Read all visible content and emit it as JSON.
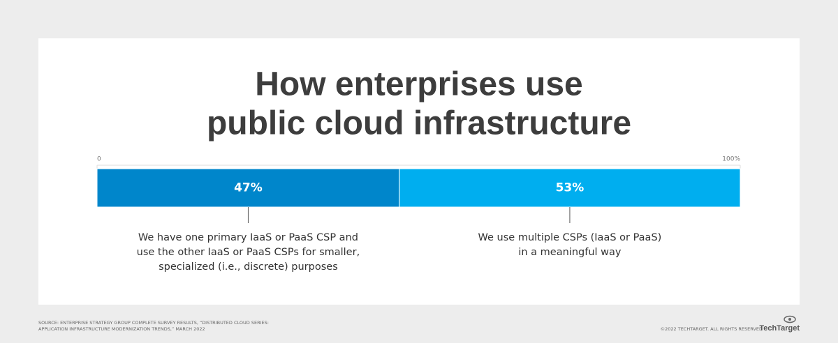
{
  "chart_data": {
    "type": "stacked-bar-100",
    "title": [
      "How enterprises use",
      "public cloud infrastructure"
    ],
    "xlim": [
      0,
      100
    ],
    "xticks": [
      0,
      {
        "value": 100,
        "label": "100%"
      }
    ],
    "series": [
      {
        "name": "We have one primary IaaS or PaaS CSP and use the other IaaS or PaaS CSPs for smaller, specialized (i.e., discrete) purposes",
        "color": "#0086cb",
        "values": [
          47
        ],
        "value_labels": [
          "47%"
        ]
      },
      {
        "name": "We use multiple CSPs (IaaS or PaaS) in a meaningful way",
        "color": "#00aeef",
        "values": [
          53
        ],
        "value_labels": [
          "53%"
        ]
      }
    ],
    "source": [
      "SOURCE: ENTERPRISE STRATEGY GROUP COMPLETE SURVEY RESULTS, “DISTRIBUTED CLOUD SERIES:",
      "APPLICATION INFRASTRUCTURE MODERNIZATION TRENDS,” MARCH 2022"
    ],
    "copyright": "©2022 TECHTARGET. ALL RIGHTS RESERVED",
    "logo": "TechTarget"
  }
}
